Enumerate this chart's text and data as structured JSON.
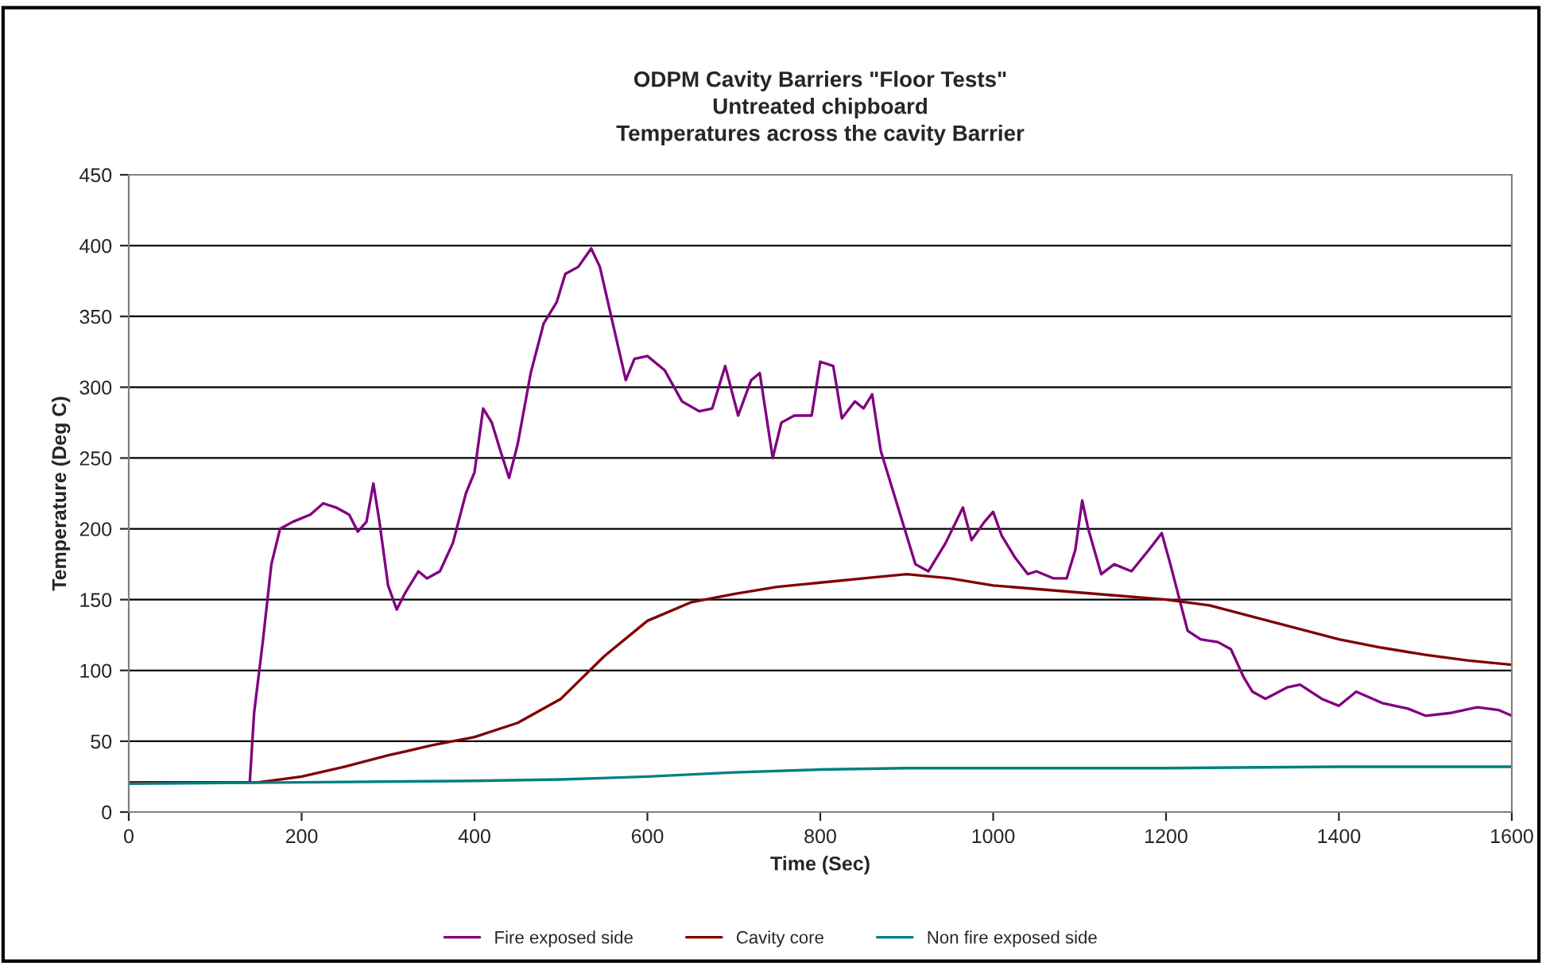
{
  "chart_data": {
    "type": "line",
    "title": "ODPM Cavity Barriers \"Floor Tests\"\nUntreated chipboard\nTemperatures across the cavity Barrier",
    "xlabel": "Time (Sec)",
    "ylabel": "Temperature (Deg C)",
    "xlim": [
      0,
      1600
    ],
    "xticks": [
      0,
      200,
      400,
      600,
      800,
      1000,
      1200,
      1400,
      1600
    ],
    "ylim": [
      0,
      450
    ],
    "yticks": [
      0,
      50,
      100,
      150,
      200,
      250,
      300,
      350,
      400,
      450
    ],
    "grid": "y",
    "legend": "bottom",
    "marker": "none",
    "line_style": "solid",
    "series": [
      {
        "name": "Fire exposed side",
        "color": "#800080",
        "x": [
          0,
          140,
          145,
          155,
          165,
          175,
          190,
          210,
          225,
          240,
          255,
          265,
          275,
          283,
          290,
          300,
          310,
          320,
          335,
          345,
          360,
          375,
          390,
          400,
          410,
          420,
          430,
          440,
          450,
          465,
          480,
          495,
          505,
          520,
          535,
          545,
          560,
          575,
          585,
          600,
          620,
          640,
          660,
          675,
          690,
          705,
          720,
          730,
          745,
          755,
          770,
          790,
          800,
          815,
          825,
          840,
          850,
          860,
          870,
          890,
          910,
          925,
          945,
          965,
          975,
          990,
          1000,
          1010,
          1025,
          1040,
          1050,
          1070,
          1085,
          1095,
          1103,
          1110,
          1125,
          1140,
          1160,
          1180,
          1195,
          1205,
          1225,
          1240,
          1260,
          1275,
          1290,
          1300,
          1315,
          1340,
          1355,
          1380,
          1400,
          1420,
          1450,
          1480,
          1500,
          1530,
          1560,
          1585,
          1600
        ],
        "values": [
          21,
          21,
          70,
          120,
          175,
          200,
          205,
          210,
          218,
          215,
          210,
          198,
          205,
          232,
          205,
          160,
          143,
          155,
          170,
          165,
          170,
          190,
          225,
          240,
          285,
          275,
          255,
          236,
          260,
          310,
          345,
          360,
          380,
          385,
          398,
          385,
          345,
          305,
          320,
          322,
          312,
          290,
          283,
          285,
          315,
          280,
          305,
          310,
          250,
          275,
          280,
          280,
          318,
          315,
          278,
          290,
          285,
          295,
          255,
          215,
          175,
          170,
          190,
          215,
          192,
          205,
          212,
          195,
          180,
          168,
          170,
          165,
          165,
          185,
          220,
          200,
          168,
          175,
          170,
          185,
          197,
          175,
          128,
          122,
          120,
          115,
          95,
          85,
          80,
          88,
          90,
          80,
          75,
          85,
          77,
          73,
          68,
          70,
          74,
          72,
          68
        ]
      },
      {
        "name": "Cavity core",
        "color": "#800000",
        "x": [
          0,
          150,
          200,
          250,
          300,
          350,
          400,
          450,
          500,
          550,
          600,
          650,
          700,
          750,
          800,
          850,
          900,
          950,
          1000,
          1100,
          1200,
          1250,
          1300,
          1350,
          1400,
          1450,
          1500,
          1550,
          1600
        ],
        "values": [
          21,
          21,
          25,
          32,
          40,
          47,
          53,
          63,
          80,
          110,
          135,
          148,
          154,
          159,
          162,
          165,
          168,
          165,
          160,
          155,
          150,
          146,
          138,
          130,
          122,
          116,
          111,
          107,
          104
        ]
      },
      {
        "name": "Non fire exposed side",
        "color": "#008080",
        "x": [
          0,
          200,
          400,
          500,
          600,
          700,
          800,
          900,
          1000,
          1200,
          1400,
          1600
        ],
        "values": [
          20,
          21,
          22,
          23,
          25,
          28,
          30,
          31,
          31,
          31,
          32,
          32
        ]
      }
    ]
  }
}
